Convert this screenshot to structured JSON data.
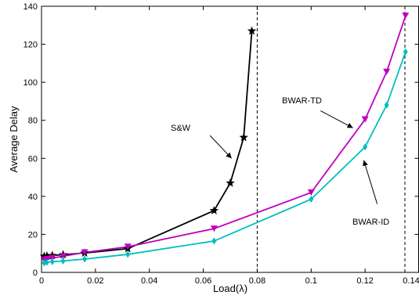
{
  "chart_data": {
    "type": "line",
    "xlabel": "Load(λ)",
    "ylabel": "Average Delay",
    "xlim": [
      0,
      0.14
    ],
    "ylim": [
      0,
      140
    ],
    "xticks": [
      0,
      0.02,
      0.04,
      0.06,
      0.08,
      0.1,
      0.12,
      0.14
    ],
    "xtick_labels": [
      "0",
      "0.02",
      "0.04",
      "0.06",
      "0.08",
      "0.1",
      "0.12",
      "0.14"
    ],
    "yticks": [
      0,
      20,
      40,
      60,
      80,
      100,
      120,
      140
    ],
    "ytick_labels": [
      "0",
      "20",
      "40",
      "60",
      "80",
      "100",
      "120",
      "140"
    ],
    "grid": false,
    "legend": "none",
    "vlines": [
      0.08,
      0.14
    ],
    "series": [
      {
        "name": "S&W",
        "color": "#000000",
        "marker": "star",
        "points": [
          [
            0.001,
            8.5
          ],
          [
            0.002,
            8.7
          ],
          [
            0.004,
            8.9
          ],
          [
            0.008,
            9.3
          ],
          [
            0.016,
            10.2
          ],
          [
            0.032,
            12.5
          ],
          [
            0.064,
            32.5
          ],
          [
            0.07,
            47
          ],
          [
            0.075,
            71
          ],
          [
            0.078,
            127
          ]
        ]
      },
      {
        "name": "BWAR-TD",
        "color": "#bf00bf",
        "marker": "triangle-down",
        "points": [
          [
            0.001,
            6.5
          ],
          [
            0.002,
            7
          ],
          [
            0.004,
            7.5
          ],
          [
            0.008,
            8.5
          ],
          [
            0.016,
            10.5
          ],
          [
            0.032,
            13.5
          ],
          [
            0.064,
            23
          ],
          [
            0.1,
            42
          ],
          [
            0.12,
            80.5
          ],
          [
            0.128,
            105.5
          ],
          [
            0.135,
            135
          ]
        ]
      },
      {
        "name": "BWAR-ID",
        "color": "#00bfbf",
        "marker": "diamond",
        "points": [
          [
            0.001,
            5
          ],
          [
            0.002,
            5.3
          ],
          [
            0.004,
            5.6
          ],
          [
            0.008,
            6
          ],
          [
            0.016,
            7
          ],
          [
            0.032,
            9.5
          ],
          [
            0.064,
            16.5
          ],
          [
            0.1,
            38.5
          ],
          [
            0.12,
            66
          ],
          [
            0.128,
            88
          ],
          [
            0.135,
            116
          ]
        ]
      }
    ],
    "annotations": [
      {
        "text": "S&W",
        "arrow_from": [
          0.0625,
          72
        ],
        "arrow_to": [
          0.0705,
          60
        ]
      },
      {
        "text": "BWAR-TD",
        "arrow_from": [
          0.1035,
          85
        ],
        "arrow_to": [
          0.1155,
          76
        ]
      },
      {
        "text": "BWAR-ID",
        "arrow_from": [
          0.1245,
          36
        ],
        "arrow_to": [
          0.1195,
          59
        ]
      }
    ]
  }
}
